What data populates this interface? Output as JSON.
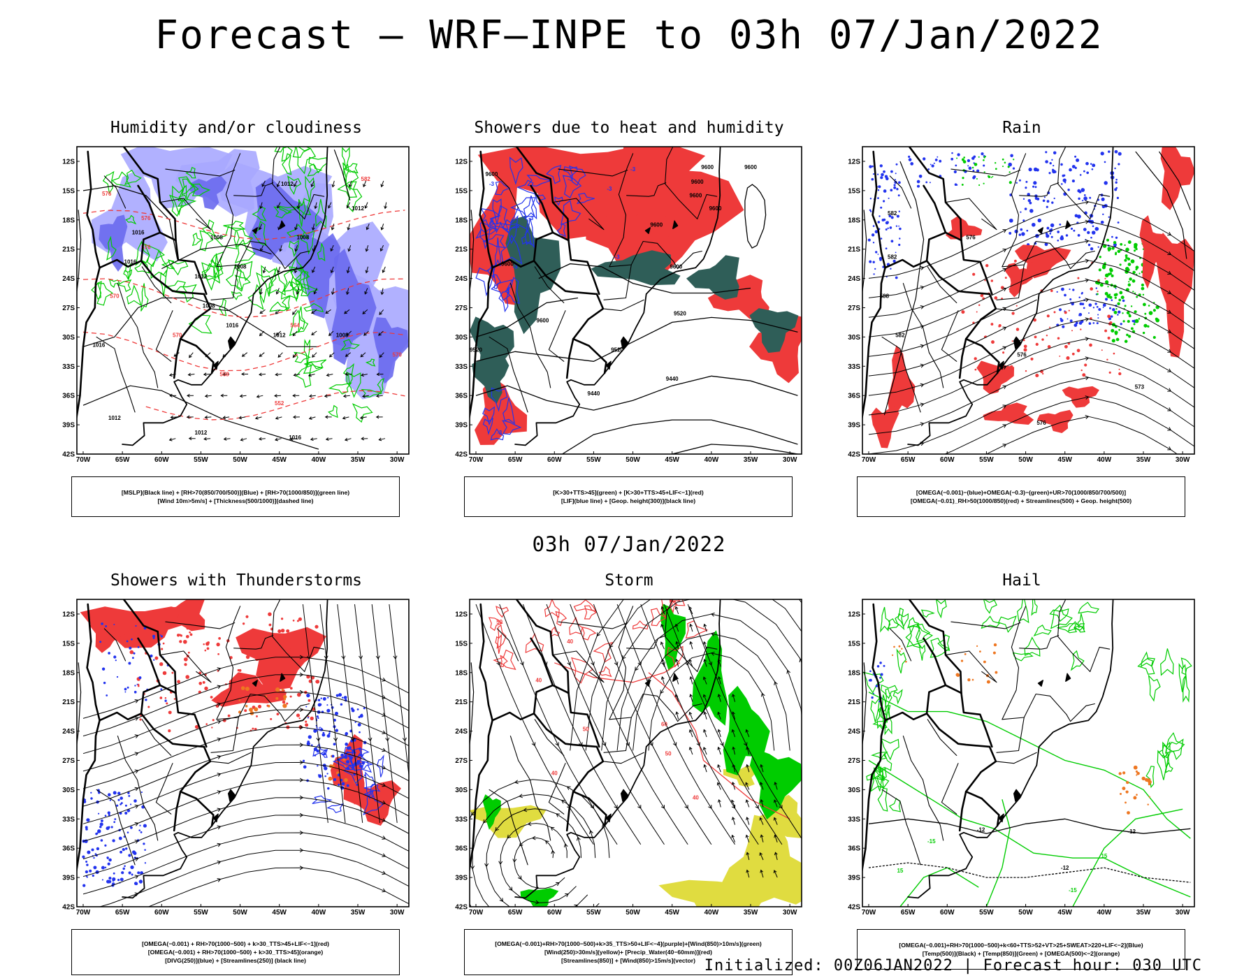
{
  "title": "Forecast — WRF—INPE to 03h 07/Jan/2022",
  "subtitle": "03h 07/Jan/2022",
  "footer": "Initialized: 00Z06JAN2022 | Forecast hour: 030 UTC",
  "colors": {
    "red": "#ee3a3a",
    "green": "#00cc00",
    "blue": "#2233ee",
    "lightblue": "#a8a8ff",
    "midblue": "#6a6aee",
    "darkteal": "#2f5e58",
    "yellow": "#e0dc40",
    "orange": "#ee7722",
    "purple": "#a020f0"
  },
  "axes": {
    "lats": [
      "12S",
      "15S",
      "18S",
      "21S",
      "24S",
      "27S",
      "30S",
      "33S",
      "36S",
      "39S",
      "42S"
    ],
    "lons": [
      "70W",
      "65W",
      "60W",
      "55W",
      "50W",
      "45W",
      "40W",
      "35W",
      "30W"
    ]
  },
  "panels": [
    {
      "id": "humidity",
      "title": "Humidity and/or cloudiness",
      "legend": [
        "[MSLP](Black line) + [RH>70(850/700/500)](Blue) + [RH>70(1000/850)](green line)",
        "[Wind 10m>5m/s] + [Thickness(500/1000)](dashed line)"
      ],
      "contour_labels": [
        "1012",
        "1008",
        "1016",
        "1016",
        "1012",
        "1008",
        "1008",
        "1008",
        "1012",
        "1012",
        "1016",
        "1008",
        "1016",
        "1012",
        "1012",
        "1016",
        "576",
        "576",
        "570",
        "570",
        "564",
        "558",
        "552",
        "576",
        "570",
        "582"
      ]
    },
    {
      "id": "showers-heat",
      "title": "Showers due to heat and humidity",
      "legend": [
        "[K>30+TTS>45](green) + [K>30+TTS>45+LIF<−1](red)",
        "[LIF](blue line) + [Geop. height(300)](black line)"
      ],
      "contour_labels": [
        "9600",
        "9600",
        "9600",
        "9600",
        "9600",
        "9600",
        "9600",
        "9600",
        "9600",
        "9520",
        "9520",
        "9520",
        "9440",
        "9440",
        "9600"
      ],
      "lif_labels": [
        "-3",
        "-3",
        "-3",
        "-3",
        "-3",
        "-3",
        "-3",
        "-3",
        "-3"
      ]
    },
    {
      "id": "rain",
      "title": "Rain",
      "legend": [
        "[OMEGA(−0.001)−(blue)+OMEGA(−0.3)−(green)+UR>70(1000/850/700/500)]",
        "[OMEGA(−0.01)_RH>50(1000/850)(red) + Streamlines(500) + Geop. height(500)"
      ],
      "contour_labels": [
        "582",
        "576",
        "588",
        "582",
        "582",
        "576",
        "573",
        "576"
      ]
    },
    {
      "id": "thunderstorms",
      "title": "Showers with Thunderstorms",
      "legend": [
        "[OMEGA(−0.001) + RH>70(1000−500) + k>30_TTS>45+LIF<−1](red)",
        "[OMEGA(−0.001) + RH>70(1000−500) + k>30_TTS>45](orange)",
        "[DIVG(250)](blue) + [Streamlines(250)] (black line)"
      ],
      "contour_labels": [
        "10"
      ]
    },
    {
      "id": "storm",
      "title": "Storm",
      "legend": [
        "[OMEGA(−0.001)+RH>70(1000−500)+k>35_TTS>50+LIF<−4](purple)+[Wind(850)>10m/s](green)",
        "[Wind(250)>30m/s](yellow)+ [Precip_Water(40−60mm)](red)",
        "[Streamlines(850)] + [Wind(850)>15m/s](vector)"
      ],
      "contour_labels": [
        "50",
        "40",
        "40",
        "50",
        "40",
        "60",
        "50",
        "40"
      ]
    },
    {
      "id": "hail",
      "title": "Hail",
      "legend": [
        "[OMEGA(−0.001)+RH>70(1000−500)+k<60+TTS>52+VT>25+SWEAT>220+LIF<−2](Blue)",
        "[Temp(500)](Black) + [Temp(850)](Green) + [OMEGA(500)<−2](orange)"
      ],
      "contour_labels": [
        "-12",
        "-12",
        "-15",
        "15",
        "-12",
        "15",
        "-15"
      ]
    }
  ]
}
